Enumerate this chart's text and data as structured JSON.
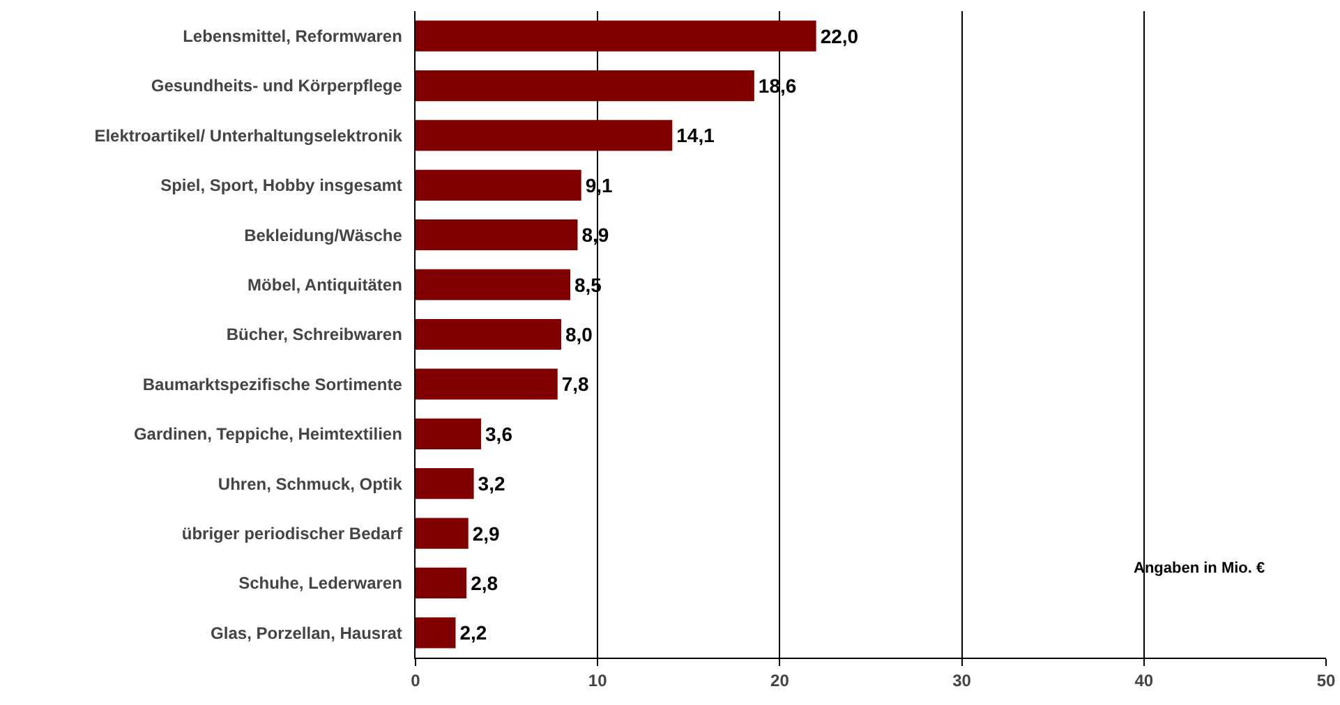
{
  "chart_data": {
    "type": "bar",
    "orientation": "horizontal",
    "categories": [
      "Lebensmittel, Reformwaren",
      "Gesundheits- und Körperpflege",
      "Elektroartikel/ Unterhaltungselektronik",
      "Spiel, Sport, Hobby insgesamt",
      "Bekleidung/Wäsche",
      "Möbel, Antiquitäten",
      "Bücher, Schreibwaren",
      "Baumarktspezifische Sortimente",
      "Gardinen, Teppiche, Heimtextilien",
      "Uhren, Schmuck, Optik",
      "übriger periodischer Bedarf",
      "Schuhe, Lederwaren",
      "Glas, Porzellan, Hausrat"
    ],
    "values": [
      22.0,
      18.6,
      14.1,
      9.1,
      8.9,
      8.5,
      8.0,
      7.8,
      3.6,
      3.2,
      2.9,
      2.8,
      2.2
    ],
    "value_labels": [
      "22,0",
      "18,6",
      "14,1",
      "9,1",
      "8,9",
      "8,5",
      "8,0",
      "7,8",
      "3,6",
      "3,2",
      "2,9",
      "2,8",
      "2,2"
    ],
    "color": "#800000",
    "xlim": [
      0,
      50
    ],
    "xticks": [
      0,
      10,
      20,
      30,
      40,
      50
    ],
    "grid": "x",
    "annotations": [
      "Angaben in Mio. €"
    ]
  }
}
